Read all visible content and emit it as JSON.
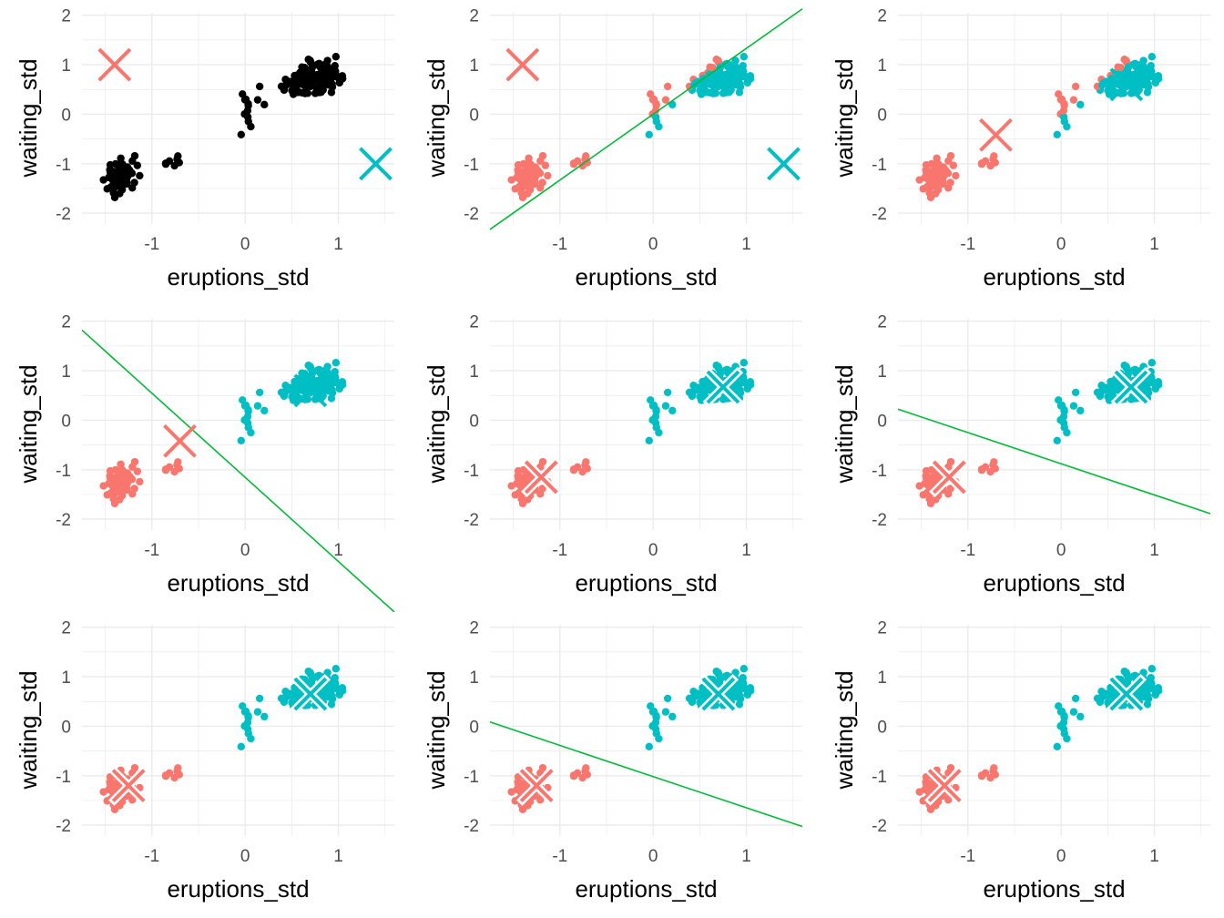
{
  "colors": {
    "cluster1": "#F8766D",
    "cluster2": "#00BFC4",
    "unassigned": "#000000",
    "boundary": "#00BA38",
    "grid": "#EBEBEB"
  },
  "chart_data": {
    "type": "scatter",
    "layout": "3x3 grid of panels (k-means iterations)",
    "xlabel": "eruptions_std",
    "ylabel": "waiting_std",
    "xlim": [
      -1.75,
      1.6
    ],
    "ylim": [
      -2.2,
      2.05
    ],
    "xticks": [
      -1,
      0,
      1
    ],
    "yticks": [
      -2,
      -1,
      0,
      1,
      2
    ],
    "grid": true,
    "clusters": [
      {
        "id": "cluster1",
        "groups": [
          {
            "cx": -1.35,
            "cy": -1.25,
            "sx": 0.16,
            "sy": 0.3,
            "n": 95,
            "rho": 0.35
          },
          {
            "cx": -0.75,
            "cy": -0.95,
            "sx": 0.18,
            "sy": 0.24,
            "n": 7,
            "rho": 0.3
          }
        ]
      },
      {
        "id": "cluster2",
        "groups": [
          {
            "cx": 0.72,
            "cy": 0.7,
            "sx": 0.32,
            "sy": 0.33,
            "n": 160,
            "rho": 0.35
          },
          {
            "cx": 0.05,
            "cy": 0.15,
            "sx": 0.15,
            "sy": 0.55,
            "n": 14,
            "rho": 0.4
          }
        ]
      }
    ],
    "panels": [
      {
        "mode": "all_black",
        "centroids": [
          {
            "x": -1.4,
            "y": 1.0,
            "cluster": 0
          },
          {
            "x": 1.4,
            "y": -1.0,
            "cluster": 1
          }
        ],
        "boundary": null
      },
      {
        "mode": "diag",
        "centroids": [
          {
            "x": -1.4,
            "y": 1.0,
            "cluster": 0
          },
          {
            "x": 1.4,
            "y": -1.0,
            "cluster": 1
          }
        ],
        "boundary": {
          "a": 0.0,
          "b": 1.4,
          "y1": 0.0
        }
      },
      {
        "mode": "diag",
        "centroids": [
          {
            "x": -0.7,
            "y": -0.42,
            "cluster": 0
          },
          {
            "x": 0.7,
            "y": 0.6,
            "cluster": 1
          }
        ],
        "boundary": null
      },
      {
        "mode": "cluster",
        "centroids": [
          {
            "x": -0.7,
            "y": -0.42,
            "cluster": 0
          },
          {
            "x": 0.7,
            "y": 0.6,
            "cluster": 1
          }
        ],
        "boundary": {
          "a": -1.22,
          "b": 1.0,
          "y1": 0.92
        }
      },
      {
        "mode": "cluster",
        "centroids": [
          {
            "x": -1.2,
            "y": -1.15,
            "cluster": 0
          },
          {
            "x": 0.75,
            "y": 0.67,
            "cluster": 1
          }
        ],
        "boundary": null
      },
      {
        "mode": "cluster",
        "centroids": [
          {
            "x": -1.2,
            "y": -1.15,
            "cluster": 0
          },
          {
            "x": 0.75,
            "y": 0.67,
            "cluster": 1
          }
        ],
        "boundary": {
          "a": -0.38,
          "b": 0.93,
          "y1": -0.64
        }
      },
      {
        "mode": "cluster",
        "centroids": [
          {
            "x": -1.25,
            "y": -1.2,
            "cluster": 0
          },
          {
            "x": 0.7,
            "y": 0.65,
            "cluster": 1
          }
        ],
        "boundary": null
      },
      {
        "mode": "cluster",
        "centroids": [
          {
            "x": -1.25,
            "y": -1.2,
            "cluster": 0
          },
          {
            "x": 0.7,
            "y": 0.65,
            "cluster": 1
          }
        ],
        "boundary": {
          "a": -0.44,
          "b": 1.02,
          "y1": -0.74
        }
      },
      {
        "mode": "cluster",
        "centroids": [
          {
            "x": -1.25,
            "y": -1.2,
            "cluster": 0
          },
          {
            "x": 0.7,
            "y": 0.65,
            "cluster": 1
          }
        ],
        "boundary": null
      }
    ]
  }
}
